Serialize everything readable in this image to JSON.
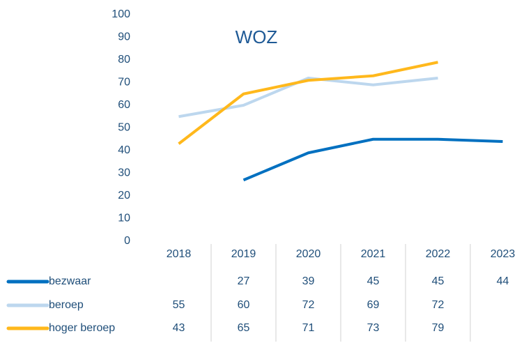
{
  "chart_data": {
    "type": "line",
    "title": "WOZ",
    "categories": [
      "2018",
      "2019",
      "2020",
      "2021",
      "2022",
      "2023"
    ],
    "series": [
      {
        "name": "bezwaar",
        "color": "#0070c0",
        "values": [
          null,
          27,
          39,
          45,
          45,
          44
        ]
      },
      {
        "name": "beroep",
        "color": "#bdd7ee",
        "values": [
          55,
          60,
          72,
          69,
          72,
          null
        ]
      },
      {
        "name": "hoger beroep",
        "color": "#ffb81c",
        "values": [
          43,
          65,
          71,
          73,
          79,
          null
        ]
      }
    ],
    "ylim": [
      0,
      100
    ],
    "yticks": [
      0,
      10,
      20,
      30,
      40,
      50,
      60,
      70,
      80,
      90,
      100
    ],
    "grid": false
  }
}
